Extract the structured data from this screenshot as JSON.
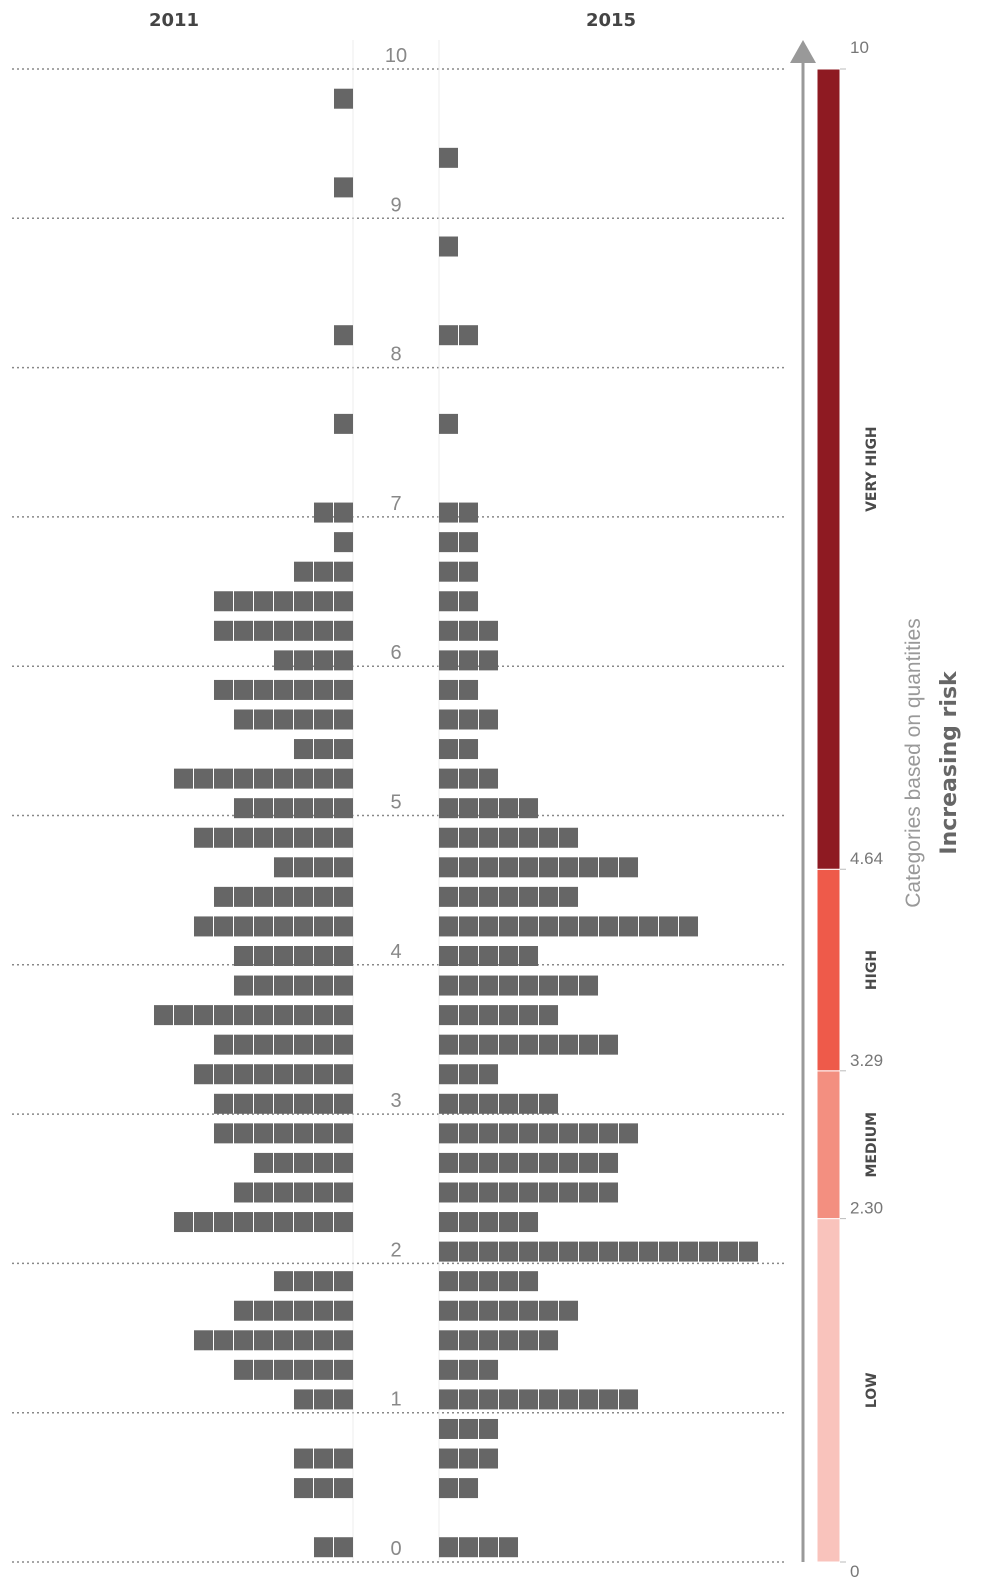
{
  "chart_data": {
    "type": "bar",
    "title": "",
    "axis": {
      "min": 0,
      "max": 10,
      "ticks": [
        "0",
        "1",
        "2",
        "3",
        "4",
        "5",
        "6",
        "7",
        "8",
        "9",
        "10"
      ],
      "grid": true
    },
    "series": [
      {
        "name": "2011",
        "values": [
          2,
          0,
          3,
          3,
          0,
          3,
          6,
          8,
          6,
          4,
          0,
          9,
          6,
          5,
          7,
          7,
          8,
          7,
          10,
          6,
          6,
          8,
          7,
          4,
          8,
          6,
          9,
          3,
          6,
          7,
          4,
          7,
          7,
          3,
          1,
          2,
          0,
          0,
          1,
          0,
          0,
          1,
          0,
          0,
          0,
          0,
          1,
          0,
          0,
          1,
          0,
          0,
          0,
          0,
          0
        ]
      },
      {
        "name": "2015",
        "values": [
          4,
          0,
          2,
          3,
          3,
          10,
          3,
          6,
          7,
          5,
          16,
          5,
          9,
          9,
          10,
          6,
          3,
          9,
          6,
          8,
          5,
          13,
          7,
          10,
          7,
          5,
          3,
          2,
          3,
          2,
          3,
          3,
          2,
          2,
          2,
          2,
          0,
          0,
          1,
          0,
          0,
          2,
          0,
          0,
          1,
          0,
          0,
          1,
          0,
          0,
          0,
          0,
          0,
          0,
          0
        ]
      }
    ],
    "row_step": 0.198,
    "block_unit": "1 block per item",
    "color_scale": {
      "title": "Increasing risk",
      "subtitle": "Categories based on quantities",
      "breaks": [
        "0",
        "2.30",
        "3.29",
        "4.64",
        "10"
      ],
      "categories": [
        {
          "label": "LOW",
          "from": 0,
          "to": 2.3,
          "color": "#f9c3bc"
        },
        {
          "label": "MEDIUM",
          "from": 2.3,
          "to": 3.29,
          "color": "#f38f80"
        },
        {
          "label": "HIGH",
          "from": 3.29,
          "to": 4.64,
          "color": "#ee5a4a"
        },
        {
          "label": "VERY HIGH",
          "from": 4.64,
          "to": 10,
          "color": "#8e1a22"
        }
      ]
    },
    "block_color": "#666666",
    "arrow_color": "#999999"
  }
}
